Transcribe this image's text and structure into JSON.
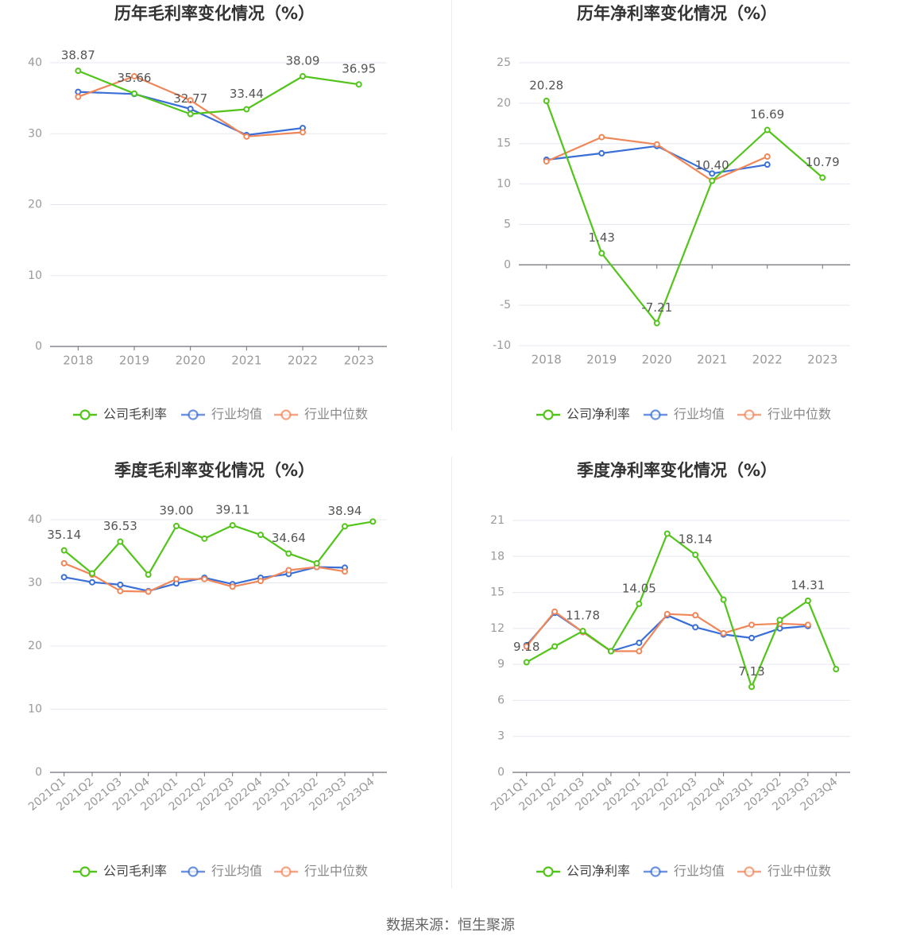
{
  "colors": {
    "company": "#52c41a",
    "average": "#3a6fd8",
    "median": "#f0875a",
    "grid": "#e6e8f0",
    "axis": "#6e7079",
    "label": "#999999",
    "value": "#555555",
    "title": "#333333"
  },
  "legend_labels": {
    "gross": [
      "公司毛利率",
      "行业均值",
      "行业中位数"
    ],
    "net": [
      "公司净利率",
      "行业均值",
      "行业中位数"
    ]
  },
  "source": "数据来源：恒生聚源",
  "chart_data": [
    {
      "type": "line",
      "title": "历年毛利率变化情况（%）",
      "categories": [
        "2018",
        "2019",
        "2020",
        "2021",
        "2022",
        "2023"
      ],
      "y_ticks": [
        0,
        10,
        20,
        30,
        40
      ],
      "ylim": [
        0,
        40
      ],
      "grid": true,
      "legend_position": "bottom",
      "series": [
        {
          "name": "公司毛利率",
          "color_key": "company",
          "values": [
            38.87,
            35.66,
            32.77,
            33.44,
            38.09,
            36.95
          ],
          "labels": [
            "38.87",
            "35.66",
            "32.77",
            "33.44",
            "38.09",
            "36.95"
          ]
        },
        {
          "name": "行业均值",
          "color_key": "average",
          "values": [
            35.9,
            35.6,
            33.5,
            29.8,
            30.8,
            null
          ]
        },
        {
          "name": "行业中位数",
          "color_key": "median",
          "values": [
            35.2,
            38.1,
            34.7,
            29.6,
            30.2,
            null
          ]
        }
      ]
    },
    {
      "type": "line",
      "title": "历年净利率变化情况（%）",
      "categories": [
        "2018",
        "2019",
        "2020",
        "2021",
        "2022",
        "2023"
      ],
      "y_ticks": [
        -10,
        -5,
        0,
        5,
        10,
        15,
        20,
        25
      ],
      "ylim": [
        -10,
        25
      ],
      "grid": true,
      "legend_position": "bottom",
      "series": [
        {
          "name": "公司净利率",
          "color_key": "company",
          "values": [
            20.28,
            1.43,
            -7.21,
            10.4,
            16.69,
            10.79
          ],
          "labels": [
            "20.28",
            "1.43",
            "-7.21",
            "10.40",
            "16.69",
            "10.79"
          ]
        },
        {
          "name": "行业均值",
          "color_key": "average",
          "values": [
            13.0,
            13.8,
            14.7,
            11.3,
            12.4,
            null
          ]
        },
        {
          "name": "行业中位数",
          "color_key": "median",
          "values": [
            12.8,
            15.8,
            14.9,
            10.4,
            13.4,
            null
          ]
        }
      ]
    },
    {
      "type": "line",
      "title": "季度毛利率变化情况（%）",
      "categories": [
        "2021Q1",
        "2021Q2",
        "2021Q3",
        "2021Q4",
        "2022Q1",
        "2022Q2",
        "2022Q3",
        "2022Q4",
        "2023Q1",
        "2023Q2",
        "2023Q3",
        "2023Q4"
      ],
      "y_ticks": [
        0,
        10,
        20,
        30,
        40
      ],
      "ylim": [
        0,
        40
      ],
      "grid": true,
      "legend_position": "bottom",
      "series": [
        {
          "name": "公司毛利率",
          "color_key": "company",
          "values": [
            35.14,
            31.5,
            36.53,
            31.3,
            39.0,
            37.0,
            39.11,
            37.6,
            34.64,
            33.1,
            38.94,
            39.7
          ],
          "labels": [
            "35.14",
            null,
            "36.53",
            null,
            "39.00",
            null,
            "39.11",
            null,
            "34.64",
            null,
            "38.94",
            null
          ]
        },
        {
          "name": "行业均值",
          "color_key": "average",
          "values": [
            30.9,
            30.1,
            29.7,
            28.7,
            29.9,
            30.8,
            29.8,
            30.8,
            31.4,
            32.5,
            32.4,
            null
          ]
        },
        {
          "name": "行业中位数",
          "color_key": "median",
          "values": [
            33.1,
            31.3,
            28.7,
            28.6,
            30.6,
            30.6,
            29.4,
            30.3,
            32.0,
            32.5,
            31.8,
            null
          ]
        }
      ]
    },
    {
      "type": "line",
      "title": "季度净利率变化情况（%）",
      "categories": [
        "2021Q1",
        "2021Q2",
        "2021Q3",
        "2021Q4",
        "2022Q1",
        "2022Q2",
        "2022Q3",
        "2022Q4",
        "2023Q1",
        "2023Q2",
        "2023Q3",
        "2023Q4"
      ],
      "y_ticks": [
        0,
        3,
        6,
        9,
        12,
        15,
        18,
        21
      ],
      "ylim": [
        0,
        21
      ],
      "grid": true,
      "legend_position": "bottom",
      "series": [
        {
          "name": "公司净利率",
          "color_key": "company",
          "values": [
            9.18,
            10.5,
            11.78,
            10.1,
            14.05,
            19.9,
            18.14,
            14.4,
            7.13,
            12.7,
            14.31,
            8.6
          ],
          "labels": [
            "9.18",
            null,
            "11.78",
            null,
            "14.05",
            null,
            "18.14",
            null,
            "7.13",
            null,
            "14.31",
            null
          ]
        },
        {
          "name": "行业均值",
          "color_key": "average",
          "values": [
            10.6,
            13.3,
            11.7,
            10.1,
            10.8,
            13.1,
            12.1,
            11.5,
            11.2,
            12.0,
            12.2,
            null
          ]
        },
        {
          "name": "行业中位数",
          "color_key": "median",
          "values": [
            10.5,
            13.4,
            11.7,
            10.1,
            10.1,
            13.2,
            13.1,
            11.6,
            12.3,
            12.4,
            12.3,
            null
          ]
        }
      ]
    }
  ]
}
